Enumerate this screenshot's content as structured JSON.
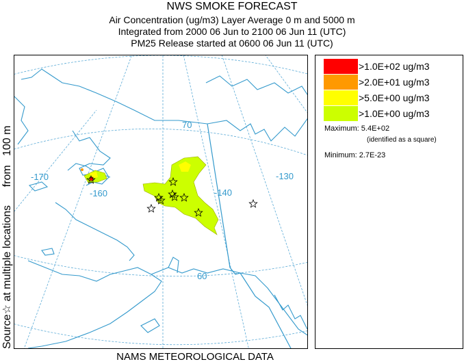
{
  "title": {
    "line1": "NWS SMOKE FORECAST",
    "line2": "Air Concentration (ug/m3) Layer Average     0 m and  5000 m",
    "line3": "Integrated from 2000 06 Jun to 2100 06 Jun 11 (UTC)",
    "line4": "PM25 Release started at 0600 06 Jun 11 (UTC)"
  },
  "y_label": {
    "source": "Source",
    "star": "☆",
    "rest": " at multiple locations      from   100 m"
  },
  "x_label": "NAMS METEOROLOGICAL DATA",
  "map": {
    "grid_labels": {
      "lat70": "70",
      "lat60": "60",
      "lon170": "-170",
      "lon160": "-160",
      "lon140": "-140",
      "lon130": "-130"
    },
    "colors": {
      "coast": "#3399cc",
      "grid": "#5aaad6",
      "level1": "#ccff00",
      "level2": "#ffff00",
      "level3": "#ff9900",
      "level4": "#ff0000"
    }
  },
  "legend": {
    "items": [
      {
        "label": ">1.0E+02 ug/m3",
        "color": "#ff0000"
      },
      {
        "label": ">2.0E+01 ug/m3",
        "color": "#ff9900"
      },
      {
        "label": ">5.0E+00 ug/m3",
        "color": "#ffff00"
      },
      {
        "label": ">1.0E+00 ug/m3",
        "color": "#ccff00"
      }
    ],
    "maximum": "Maximum: 5.4E+02",
    "identified": "(identified as a square)",
    "minimum": "Minimum: 2.7E-23"
  }
}
